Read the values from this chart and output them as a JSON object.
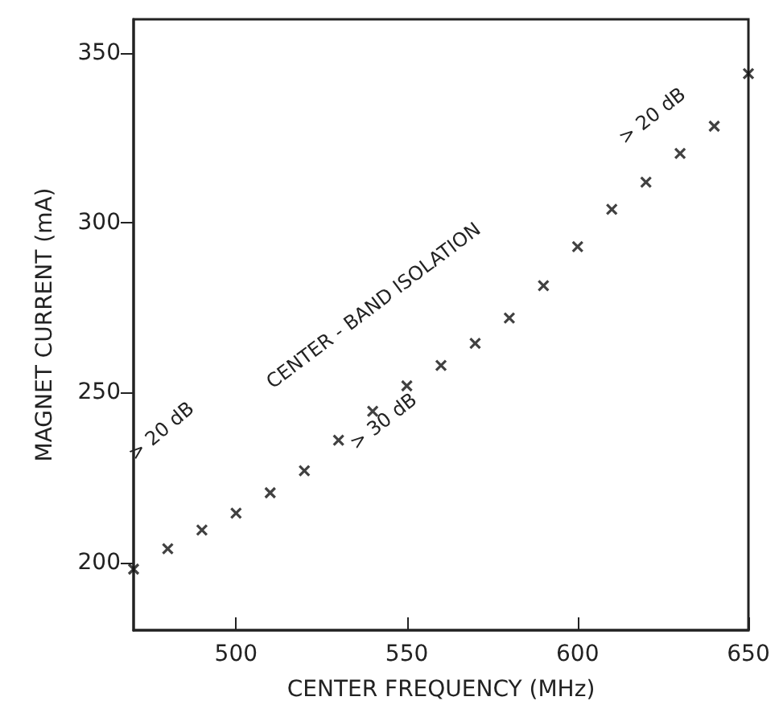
{
  "chart_data": {
    "type": "scatter",
    "xlabel": "CENTER FREQUENCY (MHz)",
    "ylabel": "MAGNET CURRENT (mA)",
    "x": [
      470,
      480,
      490,
      500,
      510,
      520,
      530,
      540,
      550,
      560,
      570,
      580,
      590,
      600,
      610,
      620,
      630,
      640,
      650
    ],
    "values": [
      198,
      204,
      209.5,
      214.5,
      220.5,
      227,
      236,
      244.5,
      252,
      258,
      264.5,
      272,
      281.5,
      293,
      304,
      312,
      320.5,
      328.5,
      344
    ],
    "color": "#111111",
    "marker": "cross",
    "grid": false,
    "xlim": [
      470,
      650
    ],
    "xticks": [
      500,
      550,
      600,
      650
    ],
    "ylim": [
      180,
      360
    ],
    "yticks": [
      200,
      250,
      300,
      350
    ],
    "annotations": [
      "> 20 dB",
      "CENTER - BAND ISOLATION",
      "> 30 dB",
      "> 20 dB"
    ]
  }
}
